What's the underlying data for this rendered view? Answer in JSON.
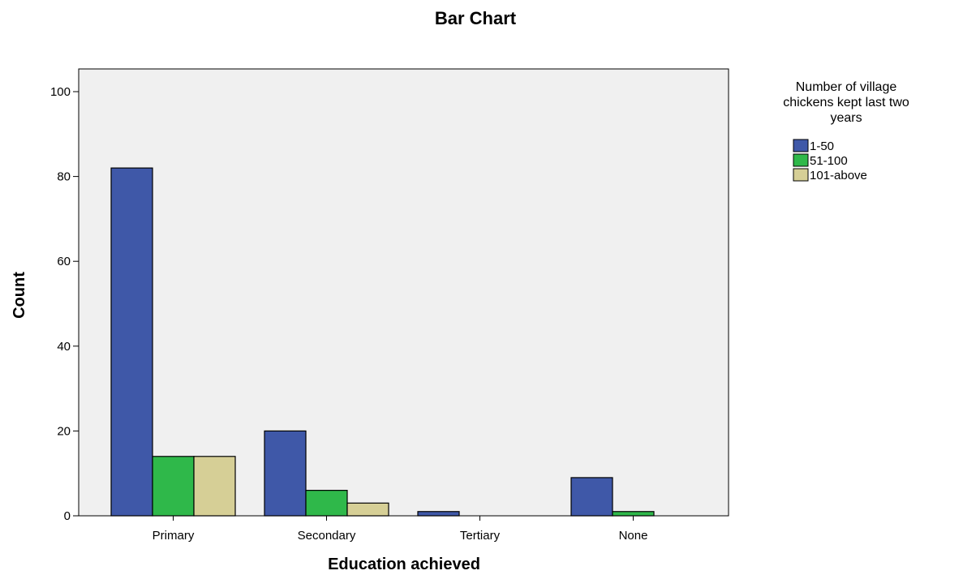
{
  "chart_data": {
    "type": "bar",
    "title": "Bar Chart",
    "xlabel": "Education achieved",
    "ylabel": "Count",
    "ylim": [
      0,
      100
    ],
    "yticks": [
      0,
      20,
      40,
      60,
      80,
      100
    ],
    "categories": [
      "Primary",
      "Secondary",
      "Tertiary",
      "None"
    ],
    "legend_title": "Number of village chickens kept last two years",
    "legend_title_lines": [
      "Number of village",
      "chickens kept last two",
      "years"
    ],
    "legend_position": "right",
    "grid": false,
    "series": [
      {
        "name": "1-50",
        "color": "#3f58a8",
        "values": [
          82,
          20,
          1,
          9
        ]
      },
      {
        "name": "51-100",
        "color": "#2fb84a",
        "values": [
          14,
          6,
          0,
          1
        ]
      },
      {
        "name": "101-above",
        "color": "#d6cf96",
        "values": [
          14,
          3,
          0,
          0
        ]
      }
    ],
    "plot_background": "#f0f0f0"
  }
}
